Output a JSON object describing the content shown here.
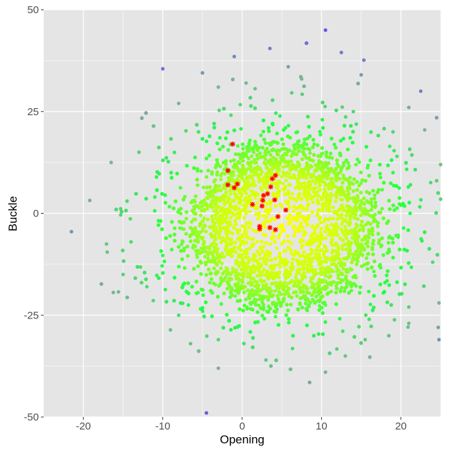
{
  "chart_data": {
    "type": "scatter",
    "title": "",
    "xlabel": "Opening",
    "ylabel": "Buckle",
    "xlim": [
      -25,
      25
    ],
    "ylim": [
      -50,
      50
    ],
    "x_ticks": [
      -20,
      -10,
      0,
      10,
      20
    ],
    "y_ticks": [
      -50,
      -25,
      0,
      25,
      50
    ],
    "grid": true,
    "panel_background": "#e5e5e5",
    "grid_color": "#ffffff",
    "color_gradient": {
      "center": [
        5,
        -3
      ],
      "stops": [
        "#ffff00",
        "#ccff11",
        "#22ff44",
        "#7fb09a",
        "#6650ee"
      ]
    },
    "series": [
      {
        "role": "background-cloud",
        "marker": "circle",
        "center": [
          5,
          -3
        ],
        "points": [
          [
            10.5,
            45
          ],
          [
            3.5,
            40.5
          ],
          [
            -1,
            38.5
          ],
          [
            12.5,
            39.5
          ],
          [
            -10,
            35.5
          ],
          [
            -5,
            34.5
          ],
          [
            5.8,
            36
          ],
          [
            15,
            34
          ],
          [
            22.5,
            30
          ],
          [
            21,
            26
          ],
          [
            23,
            20.5
          ],
          [
            24.5,
            23.5
          ],
          [
            25,
            12
          ],
          [
            24.5,
            8
          ],
          [
            25,
            3.5
          ],
          [
            24,
            -12
          ],
          [
            24.8,
            -22
          ],
          [
            24.7,
            -28
          ],
          [
            24.8,
            -31
          ],
          [
            21,
            -27
          ],
          [
            15.5,
            -31
          ],
          [
            13,
            -35
          ],
          [
            10.5,
            -39
          ],
          [
            8.5,
            -41.5
          ],
          [
            -3,
            -38
          ],
          [
            -21.5,
            -4.5
          ],
          [
            -17,
            -9.5
          ],
          [
            -15,
            -15
          ],
          [
            -16.5,
            12.5
          ],
          [
            -8,
            27
          ],
          [
            -3,
            31
          ],
          [
            7.5,
            33
          ],
          [
            0.5,
            32
          ],
          [
            -5.5,
            20
          ],
          [
            -11,
            4
          ],
          [
            -14,
            -7
          ],
          [
            -12,
            -18
          ],
          [
            -8,
            -25
          ],
          [
            -3,
            -31
          ],
          [
            16,
            -26
          ],
          [
            18,
            -17
          ],
          [
            19,
            10
          ],
          [
            19,
            20
          ],
          [
            14,
            25
          ],
          [
            -13,
            15
          ],
          [
            -14.5,
            3
          ],
          [
            18.5,
            -6
          ],
          [
            20,
            2
          ],
          [
            -6.5,
            -32
          ],
          [
            3,
            -36
          ],
          [
            -4.5,
            -49
          ],
          [
            21,
            -23
          ],
          [
            19.5,
            14
          ]
        ]
      },
      {
        "role": "highlighted",
        "name": "",
        "marker": "asterisk",
        "color": "#ff0000",
        "points": [
          [
            -1.2,
            17
          ],
          [
            -1.8,
            10.5
          ],
          [
            -1.8,
            7
          ],
          [
            -1,
            6.3
          ],
          [
            -0.6,
            7.2
          ],
          [
            1.3,
            2.2
          ],
          [
            2.5,
            1.8
          ],
          [
            2.6,
            3.2
          ],
          [
            2.7,
            4.4
          ],
          [
            3.2,
            4.8
          ],
          [
            3.6,
            6.5
          ],
          [
            3.8,
            8.5
          ],
          [
            4.2,
            9.3
          ],
          [
            4.1,
            3.3
          ],
          [
            5.5,
            0.8
          ],
          [
            4.5,
            -0.8
          ],
          [
            2.2,
            -3.2
          ],
          [
            2.2,
            -3.8
          ],
          [
            3.5,
            -3.5
          ],
          [
            4.2,
            -4.0
          ]
        ]
      }
    ]
  }
}
